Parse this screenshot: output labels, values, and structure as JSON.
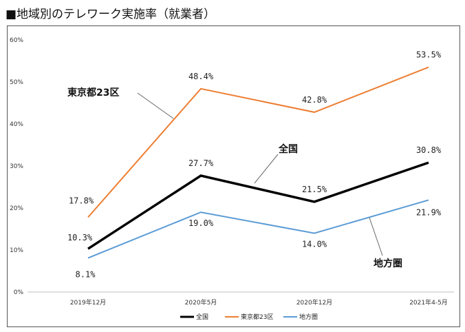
{
  "title": "■地域別のテレワーク実施率（就業者）",
  "chart_data": {
    "type": "line",
    "categories": [
      "2019年12月",
      "2020年5月",
      "2020年12月",
      "2021年4-5月"
    ],
    "y_ticks": [
      "0%",
      "10%",
      "20%",
      "30%",
      "40%",
      "50%",
      "60%"
    ],
    "ylim": [
      0,
      60
    ],
    "grid": false,
    "legend_position": "bottom",
    "series": [
      {
        "name": "全国",
        "values": [
          10.3,
          27.7,
          21.5,
          30.8
        ],
        "labels": [
          "10.3%",
          "27.7%",
          "21.5%",
          "30.8%"
        ],
        "color": "#000000"
      },
      {
        "name": "東京都23区",
        "values": [
          17.8,
          48.4,
          42.8,
          53.5
        ],
        "labels": [
          "17.8%",
          "48.4%",
          "42.8%",
          "53.5%"
        ],
        "color": "#ED7D31"
      },
      {
        "name": "地方圏",
        "values": [
          8.1,
          19.0,
          14.0,
          21.9
        ],
        "labels": [
          "8.1%",
          "19.0%",
          "14.0%",
          "21.9%"
        ],
        "color": "#5B9BD5"
      }
    ],
    "callouts": [
      "東京都23区",
      "全国",
      "地方圏"
    ]
  }
}
